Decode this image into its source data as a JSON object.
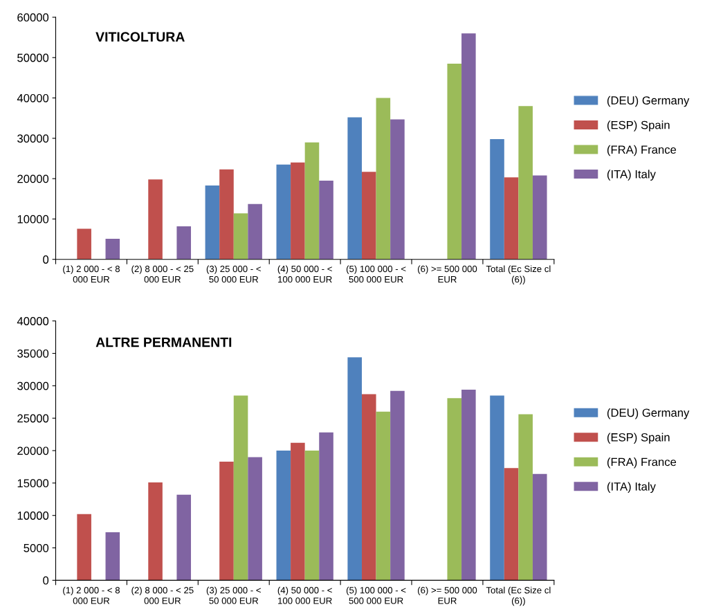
{
  "chart_data": [
    {
      "type": "bar",
      "title": "VITICOLTURA",
      "categories": [
        "(1) 2 000 - < 8 000 EUR",
        "(2) 8 000 - < 25 000 EUR",
        "(3) 25 000 - < 50 000 EUR",
        "(4) 50 000 - < 100 000 EUR",
        "(5) 100 000 - < 500 000 EUR",
        "(6) >= 500 000 EUR",
        "Total (Ec Size cl (6))"
      ],
      "series": [
        {
          "name": "(DEU) Germany",
          "color": "#4f81bd",
          "values": [
            null,
            null,
            18300,
            23500,
            35200,
            null,
            29800
          ]
        },
        {
          "name": "(ESP) Spain",
          "color": "#c0504d",
          "values": [
            7600,
            19800,
            22300,
            24000,
            21700,
            null,
            20300
          ]
        },
        {
          "name": "(FRA) France",
          "color": "#9bbb59",
          "values": [
            null,
            null,
            11400,
            29000,
            40000,
            48500,
            38000
          ]
        },
        {
          "name": "(ITA) Italy",
          "color": "#8064a2",
          "values": [
            5100,
            8200,
            13700,
            19500,
            34700,
            56000,
            20800
          ]
        }
      ],
      "ylim": [
        0,
        60000
      ],
      "yticks": [
        0,
        10000,
        20000,
        30000,
        40000,
        50000,
        60000
      ],
      "grid": false,
      "legend": "right"
    },
    {
      "type": "bar",
      "title": "ALTRE PERMANENTI",
      "categories": [
        "(1) 2 000 - < 8 000 EUR",
        "(2) 8 000 - < 25 000 EUR",
        "(3) 25 000 - < 50 000 EUR",
        "(4) 50 000 - < 100 000 EUR",
        "(5) 100 000 - < 500 000 EUR",
        "(6) >= 500 000 EUR",
        "Total (Ec Size cl (6))"
      ],
      "series": [
        {
          "name": "(DEU) Germany",
          "color": "#4f81bd",
          "values": [
            null,
            null,
            null,
            20000,
            34400,
            null,
            28500
          ]
        },
        {
          "name": "(ESP) Spain",
          "color": "#c0504d",
          "values": [
            10200,
            15100,
            18300,
            21200,
            28700,
            null,
            17300
          ]
        },
        {
          "name": "(FRA) France",
          "color": "#9bbb59",
          "values": [
            null,
            null,
            28500,
            20000,
            26000,
            28100,
            25600
          ]
        },
        {
          "name": "(ITA) Italy",
          "color": "#8064a2",
          "values": [
            7400,
            13200,
            19000,
            22800,
            29200,
            29400,
            16400
          ]
        }
      ],
      "ylim": [
        0,
        40000
      ],
      "yticks": [
        0,
        5000,
        10000,
        15000,
        20000,
        25000,
        30000,
        35000,
        40000
      ],
      "grid": false,
      "legend": "right"
    }
  ]
}
